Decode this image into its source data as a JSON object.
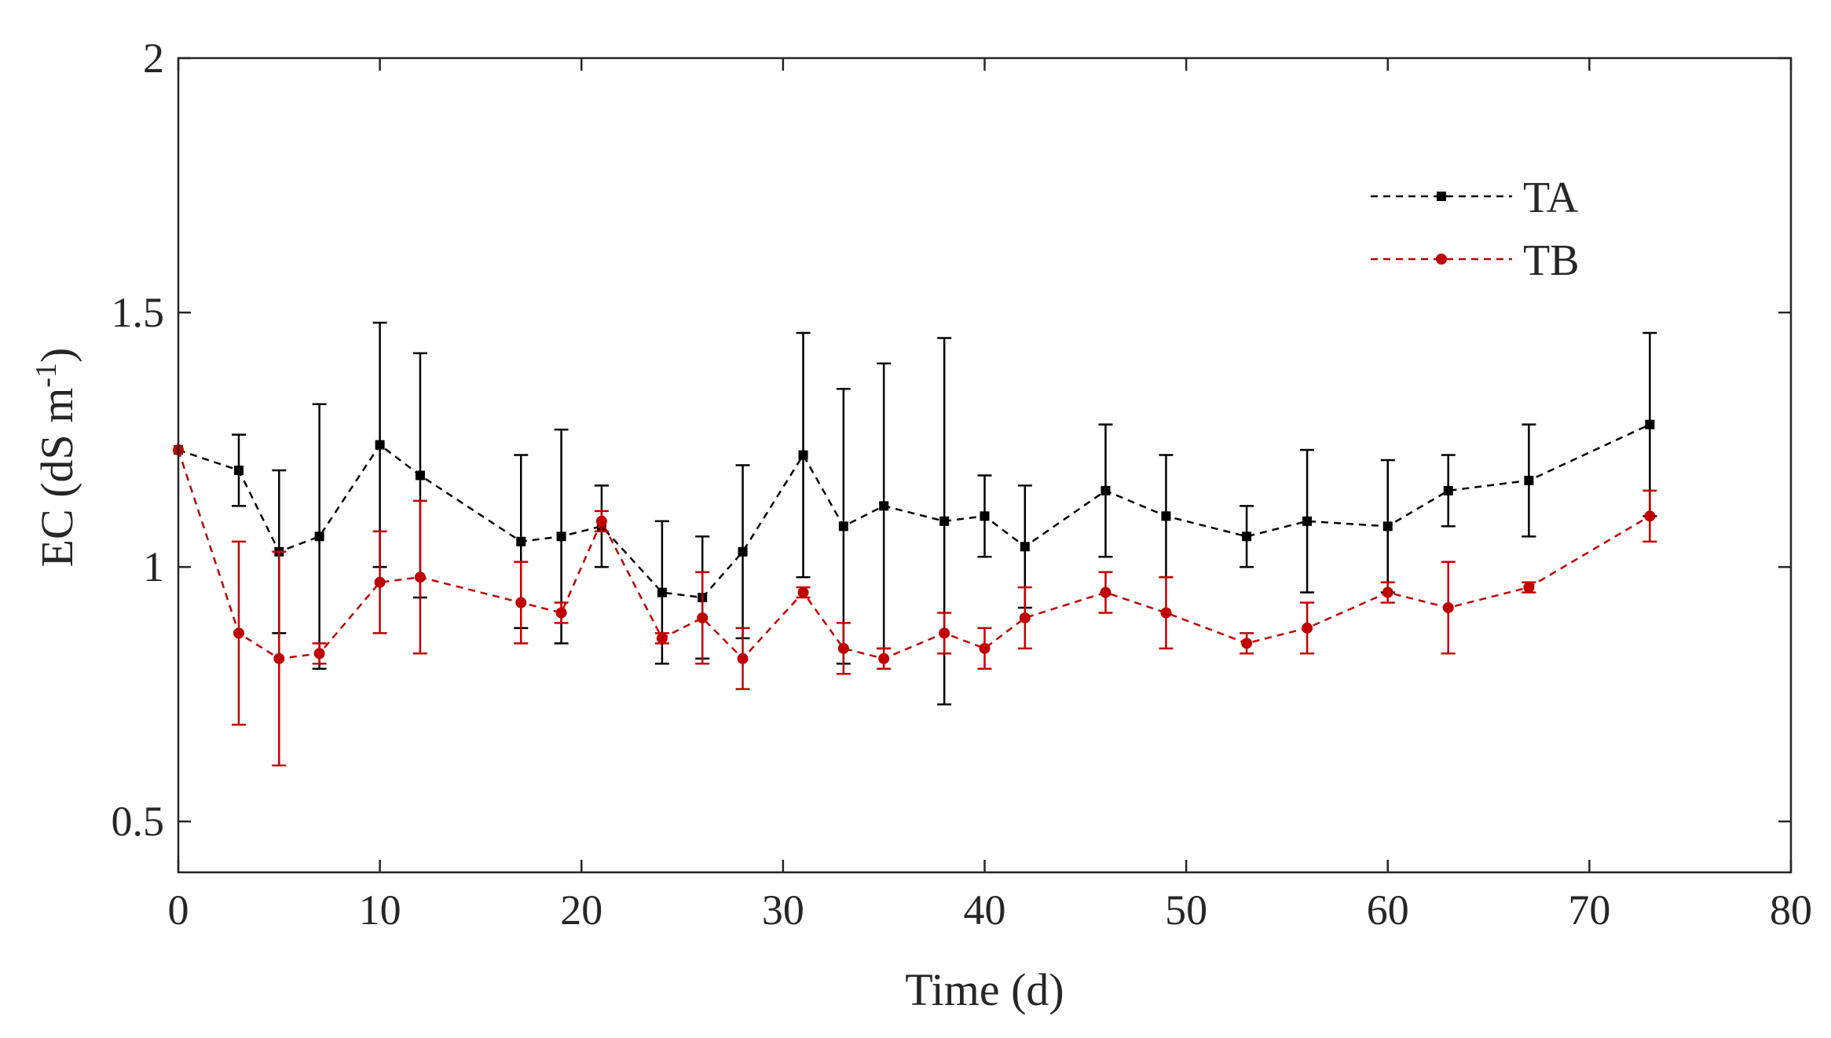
{
  "chart_data": {
    "type": "line",
    "title": "",
    "xlabel": "Time (d)",
    "ylabel": {
      "prefix": "EC (dS m",
      "sup": "-1",
      "suffix": ")"
    },
    "xlim": [
      0,
      80
    ],
    "ylim": [
      0.4,
      2.0
    ],
    "xticks": [
      0,
      10,
      20,
      30,
      40,
      50,
      60,
      70,
      80
    ],
    "yticks": [
      0.5,
      1,
      1.5,
      2
    ],
    "xtick_labels": [
      "0",
      "10",
      "20",
      "30",
      "40",
      "50",
      "60",
      "70",
      "80"
    ],
    "ytick_labels": [
      "0.5",
      "1",
      "1.5",
      "2"
    ],
    "grid": false,
    "legend_position": "top-right",
    "series": [
      {
        "name": "TA",
        "color": "#000000",
        "marker": "square",
        "line_style": "dashed",
        "x": [
          0,
          3,
          5,
          7,
          10,
          12,
          17,
          19,
          21,
          24,
          26,
          28,
          31,
          33,
          35,
          38,
          40,
          42,
          46,
          49,
          53,
          56,
          60,
          63,
          67,
          73
        ],
        "y": [
          1.23,
          1.19,
          1.03,
          1.06,
          1.24,
          1.18,
          1.05,
          1.06,
          1.08,
          0.95,
          0.94,
          1.03,
          1.22,
          1.08,
          1.12,
          1.09,
          1.1,
          1.04,
          1.15,
          1.1,
          1.06,
          1.09,
          1.08,
          1.15,
          1.17,
          1.28
        ],
        "err": [
          0,
          0.07,
          0.16,
          0.26,
          0.24,
          0.24,
          0.17,
          0.21,
          0.08,
          0.14,
          0.12,
          0.17,
          0.24,
          0.27,
          0.28,
          0.36,
          0.08,
          0.12,
          0.13,
          0.12,
          0.06,
          0.14,
          0.13,
          0.07,
          0.11,
          0.18
        ]
      },
      {
        "name": "TB",
        "color": "#c00000",
        "marker": "circle",
        "line_style": "dashed",
        "x": [
          0,
          3,
          5,
          7,
          10,
          12,
          17,
          19,
          21,
          24,
          26,
          28,
          31,
          33,
          35,
          38,
          40,
          42,
          46,
          49,
          53,
          56,
          60,
          63,
          67,
          73
        ],
        "y": [
          1.23,
          0.87,
          0.82,
          0.83,
          0.97,
          0.98,
          0.93,
          0.91,
          1.09,
          0.86,
          0.9,
          0.82,
          0.95,
          0.84,
          0.82,
          0.87,
          0.84,
          0.9,
          0.95,
          0.91,
          0.85,
          0.88,
          0.95,
          0.92,
          0.96,
          1.1
        ],
        "err": [
          0,
          0.18,
          0.21,
          0.02,
          0.1,
          0.15,
          0.08,
          0.02,
          0.02,
          0.01,
          0.09,
          0.06,
          0.01,
          0.05,
          0.02,
          0.04,
          0.04,
          0.06,
          0.04,
          0.07,
          0.02,
          0.05,
          0.02,
          0.09,
          0.01,
          0.05
        ]
      }
    ]
  }
}
